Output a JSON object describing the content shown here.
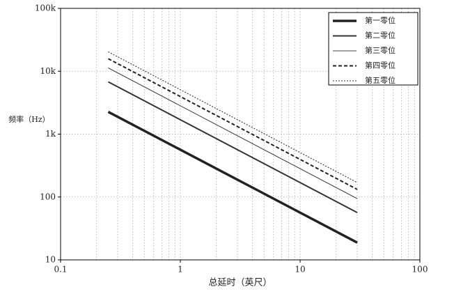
{
  "chart_data": {
    "type": "line",
    "xlabel": "总延时（英尺）",
    "ylabel": "频率（Hz）",
    "log_x": true,
    "log_y": true,
    "grid": true,
    "legend": "upper right",
    "x": [
      0.25,
      30
    ],
    "series": [
      {
        "name": "第一零位",
        "color": "#222222",
        "style": "solid",
        "weight": "thick",
        "values": [
          2260,
          18.8
        ]
      },
      {
        "name": "第二零位",
        "color": "#333333",
        "style": "solid",
        "weight": "medium",
        "values": [
          6780,
          56.5
        ]
      },
      {
        "name": "第三零位",
        "color": "#444444",
        "style": "solid",
        "weight": "thin",
        "values": [
          11300,
          94
        ]
      },
      {
        "name": "第四零位",
        "color": "#222222",
        "style": "dashed",
        "weight": "medium",
        "values": [
          15820,
          132
        ]
      },
      {
        "name": "第五零位",
        "color": "#333333",
        "style": "dotted",
        "weight": "thin",
        "values": [
          20340,
          169.5
        ]
      }
    ],
    "xlim": [
      0.1,
      100
    ],
    "xticks": [
      0.1,
      1,
      10,
      100
    ],
    "xminorticks": [
      0.2,
      0.3,
      0.4,
      0.5,
      0.6,
      0.7,
      0.8,
      0.9,
      2,
      3,
      4,
      5,
      6,
      7,
      8,
      9,
      20,
      30,
      40,
      50,
      60,
      70,
      80,
      90
    ],
    "ylim": [
      10,
      100000
    ],
    "yticks": [
      10,
      100,
      {
        "value": 1000,
        "label": "1k"
      },
      {
        "value": 10000,
        "label": "10k"
      },
      {
        "value": 100000,
        "label": "100k"
      }
    ]
  }
}
